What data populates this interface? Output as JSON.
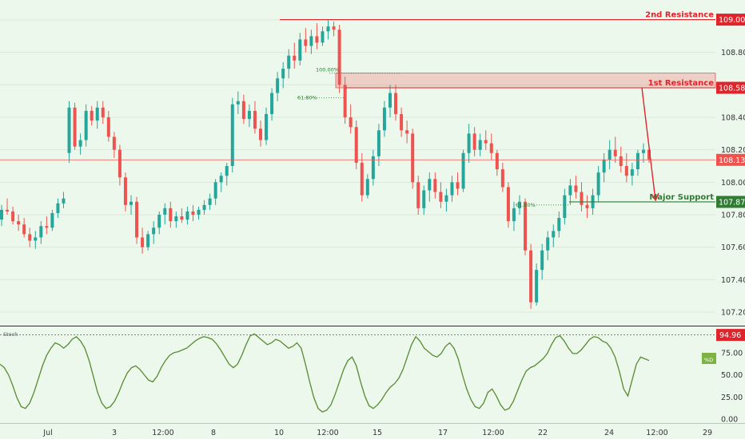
{
  "chart_data": {
    "type": "candlestick",
    "price_axis": {
      "ticks": [
        "109.000",
        "108.800",
        "108.600",
        "108.400",
        "108.200",
        "108.000",
        "107.800",
        "107.600",
        "107.400",
        "107.200"
      ],
      "ylim": [
        107.1,
        109.1
      ]
    },
    "time_axis": {
      "ticks": [
        "Jul",
        "3",
        "12:00",
        "8",
        "10",
        "12:00",
        "15",
        "17",
        "12:00",
        "22",
        "24",
        "12:00",
        "29"
      ]
    },
    "levels": [
      {
        "label": "2nd Resistance",
        "value": "109.002",
        "color": "#e0242c"
      },
      {
        "label": "1st Resistance",
        "value": "108.582",
        "color": "#e0242c"
      },
      {
        "label": "",
        "value": "108.138",
        "color": "#ef5350"
      },
      {
        "label": "Major Support",
        "value": "107.879",
        "color": "#2e7d32"
      }
    ],
    "fib_labels": [
      "100.00%",
      "61.80%",
      "61.80%"
    ],
    "candles": [
      [
        107.77,
        107.86,
        107.73,
        107.83
      ],
      [
        107.83,
        107.9,
        107.8,
        107.82
      ],
      [
        107.82,
        107.85,
        107.74,
        107.76
      ],
      [
        107.76,
        107.8,
        107.7,
        107.74
      ],
      [
        107.74,
        107.78,
        107.66,
        107.68
      ],
      [
        107.68,
        107.72,
        107.6,
        107.64
      ],
      [
        107.64,
        107.7,
        107.59,
        107.66
      ],
      [
        107.66,
        107.76,
        107.62,
        107.73
      ],
      [
        107.73,
        107.79,
        107.68,
        107.72
      ],
      [
        107.72,
        107.83,
        107.7,
        107.81
      ],
      [
        107.81,
        107.9,
        107.78,
        107.87
      ],
      [
        107.87,
        107.94,
        107.84,
        107.9
      ],
      [
        108.18,
        108.5,
        108.12,
        108.46
      ],
      [
        108.46,
        108.49,
        108.2,
        108.22
      ],
      [
        108.22,
        108.3,
        108.17,
        108.26
      ],
      [
        108.26,
        108.48,
        108.22,
        108.44
      ],
      [
        108.44,
        108.47,
        108.35,
        108.38
      ],
      [
        108.38,
        108.5,
        108.33,
        108.46
      ],
      [
        108.46,
        108.5,
        108.36,
        108.4
      ],
      [
        108.4,
        108.44,
        108.25,
        108.28
      ],
      [
        108.28,
        108.31,
        108.15,
        108.2
      ],
      [
        108.2,
        108.23,
        107.98,
        108.03
      ],
      [
        108.03,
        108.06,
        107.82,
        107.86
      ],
      [
        107.86,
        107.92,
        107.8,
        107.88
      ],
      [
        107.88,
        107.91,
        107.62,
        107.66
      ],
      [
        107.66,
        107.72,
        107.56,
        107.6
      ],
      [
        107.6,
        107.7,
        107.58,
        107.68
      ],
      [
        107.68,
        107.76,
        107.62,
        107.72
      ],
      [
        107.72,
        107.82,
        107.68,
        107.8
      ],
      [
        107.8,
        107.87,
        107.74,
        107.84
      ],
      [
        107.84,
        107.88,
        107.72,
        107.76
      ],
      [
        107.76,
        107.82,
        107.72,
        107.79
      ],
      [
        107.79,
        107.84,
        107.75,
        107.77
      ],
      [
        107.77,
        107.85,
        107.74,
        107.82
      ],
      [
        107.82,
        107.86,
        107.76,
        107.8
      ],
      [
        107.8,
        107.85,
        107.77,
        107.83
      ],
      [
        107.83,
        107.89,
        107.8,
        107.86
      ],
      [
        107.86,
        107.93,
        107.83,
        107.9
      ],
      [
        107.9,
        108.02,
        107.86,
        108.0
      ],
      [
        108.0,
        108.06,
        107.94,
        108.04
      ],
      [
        108.04,
        108.12,
        107.98,
        108.1
      ],
      [
        108.1,
        108.52,
        108.06,
        108.48
      ],
      [
        108.48,
        108.56,
        108.42,
        108.5
      ],
      [
        108.5,
        108.54,
        108.36,
        108.39
      ],
      [
        108.39,
        108.48,
        108.34,
        108.44
      ],
      [
        108.44,
        108.5,
        108.3,
        108.33
      ],
      [
        108.33,
        108.38,
        108.22,
        108.26
      ],
      [
        108.26,
        108.46,
        108.23,
        108.42
      ],
      [
        108.42,
        108.58,
        108.38,
        108.55
      ],
      [
        108.55,
        108.68,
        108.5,
        108.64
      ],
      [
        108.64,
        108.74,
        108.58,
        108.7
      ],
      [
        108.7,
        108.82,
        108.64,
        108.78
      ],
      [
        108.78,
        108.86,
        108.7,
        108.75
      ],
      [
        108.75,
        108.92,
        108.72,
        108.88
      ],
      [
        108.88,
        108.95,
        108.8,
        108.84
      ],
      [
        108.84,
        108.94,
        108.79,
        108.9
      ],
      [
        108.9,
        108.98,
        108.82,
        108.86
      ],
      [
        108.86,
        108.96,
        108.84,
        108.93
      ],
      [
        108.93,
        109.0,
        108.88,
        108.96
      ],
      [
        108.96,
        108.99,
        108.9,
        108.94
      ],
      [
        108.94,
        108.97,
        108.55,
        108.6
      ],
      [
        108.6,
        108.65,
        108.36,
        108.4
      ],
      [
        108.4,
        108.48,
        108.3,
        108.34
      ],
      [
        108.34,
        108.38,
        108.08,
        108.12
      ],
      [
        108.12,
        108.18,
        107.88,
        107.92
      ],
      [
        107.92,
        108.05,
        107.9,
        108.02
      ],
      [
        108.02,
        108.2,
        107.98,
        108.16
      ],
      [
        108.16,
        108.36,
        108.1,
        108.32
      ],
      [
        108.32,
        108.5,
        108.28,
        108.46
      ],
      [
        108.46,
        108.6,
        108.4,
        108.55
      ],
      [
        108.55,
        108.6,
        108.38,
        108.42
      ],
      [
        108.42,
        108.46,
        108.28,
        108.32
      ],
      [
        108.32,
        108.38,
        108.24,
        108.3
      ],
      [
        108.3,
        108.33,
        107.96,
        108.0
      ],
      [
        108.0,
        108.04,
        107.8,
        107.84
      ],
      [
        107.84,
        107.98,
        107.8,
        107.95
      ],
      [
        107.95,
        108.06,
        107.88,
        108.02
      ],
      [
        108.02,
        108.06,
        107.9,
        107.94
      ],
      [
        107.94,
        108.0,
        107.84,
        107.88
      ],
      [
        107.88,
        107.96,
        107.82,
        107.92
      ],
      [
        107.92,
        108.04,
        107.88,
        108.0
      ],
      [
        108.0,
        108.06,
        107.92,
        107.96
      ],
      [
        107.96,
        108.2,
        107.94,
        108.18
      ],
      [
        108.18,
        108.36,
        108.12,
        108.3
      ],
      [
        108.3,
        108.34,
        108.16,
        108.2
      ],
      [
        108.2,
        108.3,
        108.16,
        108.26
      ],
      [
        108.26,
        108.32,
        108.2,
        108.24
      ],
      [
        108.24,
        108.3,
        108.14,
        108.18
      ],
      [
        108.18,
        108.2,
        108.04,
        108.08
      ],
      [
        108.08,
        108.12,
        107.94,
        107.97
      ],
      [
        107.97,
        108.0,
        107.72,
        107.76
      ],
      [
        107.76,
        107.88,
        107.7,
        107.84
      ],
      [
        107.84,
        107.92,
        107.8,
        107.88
      ],
      [
        107.88,
        107.9,
        107.55,
        107.58
      ],
      [
        107.58,
        107.62,
        107.22,
        107.26
      ],
      [
        107.26,
        107.5,
        107.24,
        107.46
      ],
      [
        107.46,
        107.62,
        107.4,
        107.58
      ],
      [
        107.58,
        107.7,
        107.52,
        107.66
      ],
      [
        107.66,
        107.74,
        107.6,
        107.7
      ],
      [
        107.7,
        107.82,
        107.66,
        107.78
      ],
      [
        107.78,
        107.96,
        107.74,
        107.92
      ],
      [
        107.92,
        108.02,
        107.86,
        107.98
      ],
      [
        107.98,
        108.04,
        107.9,
        107.94
      ],
      [
        107.94,
        108.0,
        107.82,
        107.86
      ],
      [
        107.86,
        107.92,
        107.78,
        107.84
      ],
      [
        107.84,
        107.96,
        107.8,
        107.92
      ],
      [
        107.92,
        108.1,
        107.88,
        108.06
      ],
      [
        108.06,
        108.18,
        108.0,
        108.14
      ],
      [
        108.14,
        108.26,
        108.08,
        108.2
      ],
      [
        108.2,
        108.28,
        108.12,
        108.16
      ],
      [
        108.16,
        108.22,
        108.06,
        108.1
      ],
      [
        108.1,
        108.18,
        108.0,
        108.04
      ],
      [
        108.04,
        108.12,
        107.98,
        108.08
      ],
      [
        108.08,
        108.2,
        108.04,
        108.18
      ],
      [
        108.18,
        108.24,
        108.12,
        108.2
      ],
      [
        108.2,
        108.23,
        108.12,
        108.14
      ]
    ],
    "stoch_panel": {
      "label": "Stoch",
      "series_name": "%D",
      "ticks": [
        "75.00",
        "50.00",
        "25.00",
        "0.00"
      ],
      "ylim": [
        0,
        100
      ],
      "level": "94.96",
      "values": [
        62,
        58,
        50,
        38,
        24,
        14,
        12,
        18,
        30,
        45,
        60,
        72,
        80,
        86,
        84,
        80,
        84,
        90,
        93,
        88,
        80,
        66,
        48,
        30,
        18,
        12,
        14,
        20,
        30,
        42,
        52,
        58,
        60,
        56,
        50,
        44,
        42,
        48,
        58,
        66,
        72,
        75,
        76,
        78,
        80,
        84,
        88,
        91,
        93,
        92,
        90,
        85,
        78,
        70,
        62,
        58,
        62,
        72,
        84,
        94,
        96,
        92,
        88,
        84,
        86,
        90,
        88,
        84,
        80,
        82,
        86,
        80,
        62,
        42,
        24,
        12,
        8,
        10,
        16,
        28,
        42,
        56,
        66,
        70,
        60,
        42,
        26,
        15,
        12,
        16,
        22,
        30,
        36,
        40,
        46,
        56,
        70,
        84,
        93,
        88,
        80,
        76,
        72,
        70,
        74,
        82,
        86,
        80,
        68,
        50,
        34,
        22,
        14,
        12,
        18,
        30,
        34,
        26,
        16,
        10,
        12,
        20,
        32,
        44,
        54,
        58,
        60,
        64,
        68,
        74,
        84,
        92,
        94,
        88,
        80,
        74,
        74,
        78,
        84,
        90,
        93,
        92,
        88,
        86,
        80,
        70,
        54,
        34,
        26,
        44,
        62,
        70,
        68,
        66
      ]
    }
  }
}
